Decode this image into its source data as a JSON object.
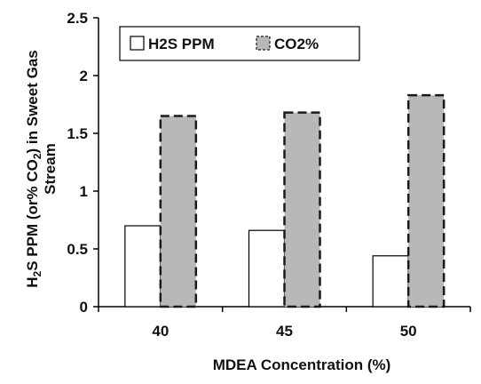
{
  "chart_data": {
    "type": "bar",
    "categories": [
      "40",
      "45",
      "50"
    ],
    "series": [
      {
        "name": "H2S PPM",
        "values": [
          0.7,
          0.66,
          0.44
        ],
        "fill": "#ffffff",
        "stroke": "#000000",
        "dashed": false
      },
      {
        "name": "CO2%",
        "values": [
          1.65,
          1.68,
          1.83
        ],
        "fill": "#b8b8b8",
        "stroke": "#1a1a1a",
        "dashed": true
      }
    ],
    "xlabel": "MDEA Concentration (%)",
    "ylabel": {
      "line1": [
        "H",
        "2",
        "S PPM (or% CO",
        "2",
        ") in Sweet Gas"
      ],
      "line2": "Stream"
    },
    "ylim": [
      0,
      2.5
    ],
    "yticks": [
      "0",
      "0.5",
      "1",
      "1.5",
      "2",
      "2.5"
    ],
    "grid": false,
    "legend": "top-left"
  }
}
